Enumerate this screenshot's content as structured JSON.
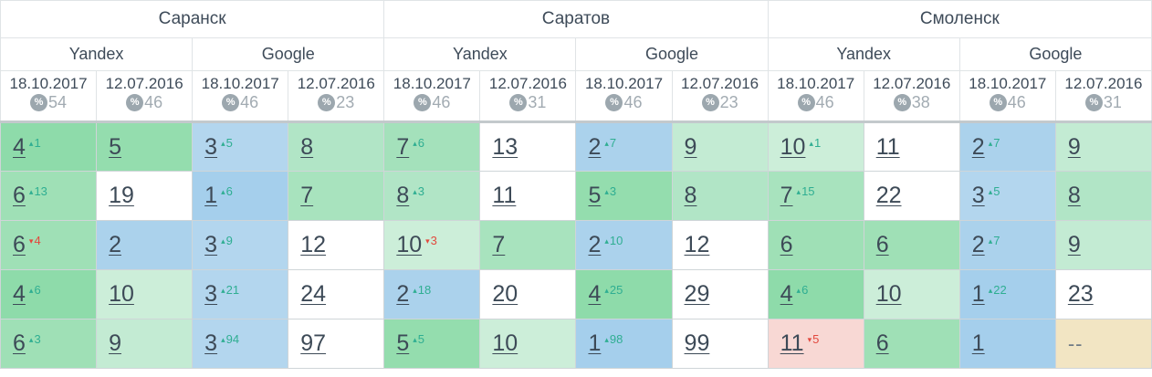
{
  "colors": {
    "up_change": "#2fae92",
    "down_change": "#e2493e",
    "link_text": "#3d4a57",
    "header_text": "#3e4b59",
    "percent_badge": "#9ca7ae",
    "percent_number": "#a2abb2",
    "bg_top3_blue": "#abd2ec",
    "bg_top5_green": "#8edbaa",
    "bg_top10_green": "#a8e3be",
    "bg_dropped_pink": "#f8d8d4",
    "bg_not_found_tan": "#f2e5c3"
  },
  "icons": {
    "up_arrow": "▴",
    "down_arrow": "▾",
    "percent": "%"
  },
  "table": {
    "percent_icon": "%",
    "cities": [
      {
        "name": "Саранск",
        "engines": [
          {
            "name": "Yandex",
            "columns": [
              {
                "date": "18.10.2017",
                "percent": "54"
              },
              {
                "date": "12.07.2016",
                "percent": "46"
              }
            ]
          },
          {
            "name": "Google",
            "columns": [
              {
                "date": "18.10.2017",
                "percent": "46"
              },
              {
                "date": "12.07.2016",
                "percent": "23"
              }
            ]
          }
        ]
      },
      {
        "name": "Саратов",
        "engines": [
          {
            "name": "Yandex",
            "columns": [
              {
                "date": "18.10.2017",
                "percent": "46"
              },
              {
                "date": "12.07.2016",
                "percent": "31"
              }
            ]
          },
          {
            "name": "Google",
            "columns": [
              {
                "date": "18.10.2017",
                "percent": "46"
              },
              {
                "date": "12.07.2016",
                "percent": "23"
              }
            ]
          }
        ]
      },
      {
        "name": "Смоленск",
        "engines": [
          {
            "name": "Yandex",
            "columns": [
              {
                "date": "18.10.2017",
                "percent": "46"
              },
              {
                "date": "12.07.2016",
                "percent": "38"
              }
            ]
          },
          {
            "name": "Google",
            "columns": [
              {
                "date": "18.10.2017",
                "percent": "46"
              },
              {
                "date": "12.07.2016",
                "percent": "31"
              }
            ]
          }
        ]
      }
    ],
    "rows": [
      {
        "cells": [
          {
            "value": "4",
            "change": "1",
            "dir": "up",
            "bg": "#8edbaa"
          },
          {
            "value": "5",
            "bg": "#94ddae"
          },
          {
            "value": "3",
            "change": "5",
            "dir": "up",
            "bg": "#b3d6ee"
          },
          {
            "value": "8",
            "bg": "#b1e5c6"
          },
          {
            "value": "7",
            "change": "6",
            "dir": "up",
            "bg": "#a4e1bb"
          },
          {
            "value": "13",
            "bg": "#ffffff"
          },
          {
            "value": "2",
            "change": "7",
            "dir": "up",
            "bg": "#abd2ec"
          },
          {
            "value": "9",
            "bg": "#c3ebd3"
          },
          {
            "value": "10",
            "change": "1",
            "dir": "up",
            "bg": "#cceed9"
          },
          {
            "value": "11",
            "bg": "#ffffff"
          },
          {
            "value": "2",
            "change": "7",
            "dir": "up",
            "bg": "#abd2ec"
          },
          {
            "value": "9",
            "bg": "#c3ebd3"
          }
        ]
      },
      {
        "cells": [
          {
            "value": "6",
            "change": "13",
            "dir": "up",
            "bg": "#9fe0b6"
          },
          {
            "value": "19",
            "bg": "#ffffff"
          },
          {
            "value": "1",
            "change": "6",
            "dir": "up",
            "bg": "#a5cfec"
          },
          {
            "value": "7",
            "bg": "#a8e3be"
          },
          {
            "value": "8",
            "change": "3",
            "dir": "up",
            "bg": "#b1e5c6"
          },
          {
            "value": "11",
            "bg": "#ffffff"
          },
          {
            "value": "5",
            "change": "3",
            "dir": "up",
            "bg": "#94ddae"
          },
          {
            "value": "8",
            "bg": "#b1e5c6"
          },
          {
            "value": "7",
            "change": "15",
            "dir": "up",
            "bg": "#a8e3be"
          },
          {
            "value": "22",
            "bg": "#ffffff"
          },
          {
            "value": "3",
            "change": "5",
            "dir": "up",
            "bg": "#b3d6ee"
          },
          {
            "value": "8",
            "bg": "#b1e5c6"
          }
        ]
      },
      {
        "cells": [
          {
            "value": "6",
            "change": "4",
            "dir": "down",
            "bg": "#9fe0b6"
          },
          {
            "value": "2",
            "bg": "#abd2ec"
          },
          {
            "value": "3",
            "change": "9",
            "dir": "up",
            "bg": "#b3d6ee"
          },
          {
            "value": "12",
            "bg": "#ffffff"
          },
          {
            "value": "10",
            "change": "3",
            "dir": "down",
            "bg": "#cceed9"
          },
          {
            "value": "7",
            "bg": "#a8e3be"
          },
          {
            "value": "2",
            "change": "10",
            "dir": "up",
            "bg": "#abd2ec"
          },
          {
            "value": "12",
            "bg": "#ffffff"
          },
          {
            "value": "6",
            "bg": "#9fe0b6"
          },
          {
            "value": "6",
            "bg": "#9fe0b6"
          },
          {
            "value": "2",
            "change": "7",
            "dir": "up",
            "bg": "#abd2ec"
          },
          {
            "value": "9",
            "bg": "#c3ebd3"
          }
        ]
      },
      {
        "cells": [
          {
            "value": "4",
            "change": "6",
            "dir": "up",
            "bg": "#8edbaa"
          },
          {
            "value": "10",
            "bg": "#cceed9"
          },
          {
            "value": "3",
            "change": "21",
            "dir": "up",
            "bg": "#b3d6ee"
          },
          {
            "value": "24",
            "bg": "#ffffff"
          },
          {
            "value": "2",
            "change": "18",
            "dir": "up",
            "bg": "#abd2ec"
          },
          {
            "value": "20",
            "bg": "#ffffff"
          },
          {
            "value": "4",
            "change": "25",
            "dir": "up",
            "bg": "#8edbaa"
          },
          {
            "value": "29",
            "bg": "#ffffff"
          },
          {
            "value": "4",
            "change": "6",
            "dir": "up",
            "bg": "#8edbaa"
          },
          {
            "value": "10",
            "bg": "#cceed9"
          },
          {
            "value": "1",
            "change": "22",
            "dir": "up",
            "bg": "#a5cfec"
          },
          {
            "value": "23",
            "bg": "#ffffff"
          }
        ]
      },
      {
        "cells": [
          {
            "value": "6",
            "change": "3",
            "dir": "up",
            "bg": "#9fe0b6"
          },
          {
            "value": "9",
            "bg": "#c3ebd3"
          },
          {
            "value": "3",
            "change": "94",
            "dir": "up",
            "bg": "#b3d6ee"
          },
          {
            "value": "97",
            "bg": "#ffffff"
          },
          {
            "value": "5",
            "change": "5",
            "dir": "up",
            "bg": "#94ddae"
          },
          {
            "value": "10",
            "bg": "#cceed9"
          },
          {
            "value": "1",
            "change": "98",
            "dir": "up",
            "bg": "#a5cfec"
          },
          {
            "value": "99",
            "bg": "#ffffff"
          },
          {
            "value": "11",
            "change": "5",
            "dir": "down",
            "bg": "#f8d8d4"
          },
          {
            "value": "6",
            "bg": "#9fe0b6"
          },
          {
            "value": "1",
            "bg": "#a5cfec"
          },
          {
            "value": "--",
            "link": false,
            "bg": "#f2e5c3"
          }
        ]
      }
    ]
  }
}
